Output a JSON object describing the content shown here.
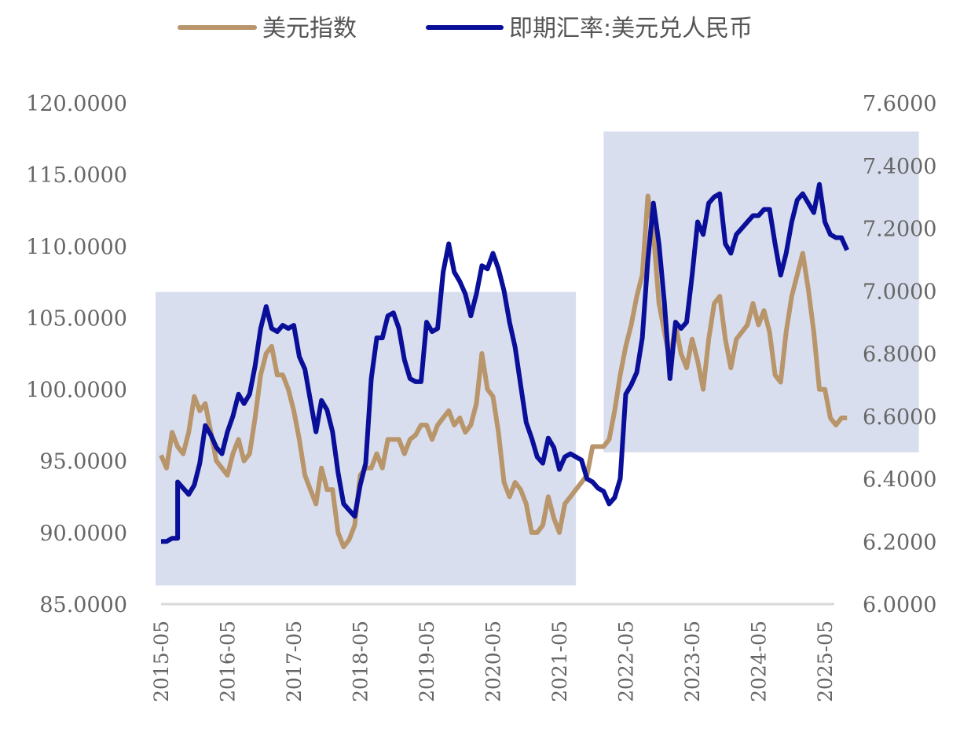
{
  "chart_data": {
    "type": "line",
    "title": "",
    "legend_position": "top",
    "colors": {
      "usd_index": "#B8956A",
      "usdcny": "#0A0F9A",
      "shade": "#D9DEEE",
      "axis": "#D9D9D9",
      "text": "#666666"
    },
    "left_axis": {
      "ylim": [
        85,
        120
      ],
      "ticks": [
        "85.0000",
        "90.0000",
        "95.0000",
        "100.0000",
        "105.0000",
        "110.0000",
        "115.0000",
        "120.0000"
      ]
    },
    "right_axis": {
      "ylim": [
        6.0,
        7.6
      ],
      "ticks": [
        "6.0000",
        "6.2000",
        "6.4000",
        "6.6000",
        "6.8000",
        "7.0000",
        "7.2000",
        "7.4000",
        "7.6000"
      ]
    },
    "x_ticks": [
      "2015-05",
      "2016-05",
      "2017-05",
      "2018-05",
      "2019-05",
      "2020-05",
      "2021-05",
      "2022-05",
      "2023-05",
      "2024-05",
      "2025-05"
    ],
    "shaded_regions": [
      {
        "x": [
          "2015-04",
          "2021-08"
        ],
        "left_y": [
          86.3,
          106.8
        ]
      },
      {
        "x": [
          "2022-01",
          "2026-10"
        ],
        "left_y": [
          95.6,
          118.0
        ]
      }
    ],
    "series": [
      {
        "name": "美元指数",
        "axis": "left",
        "points": [
          [
            "2015-05",
            95.4
          ],
          [
            "2015-06",
            94.5
          ],
          [
            "2015-07",
            97
          ],
          [
            "2015-08",
            96
          ],
          [
            "2015-09",
            95.5
          ],
          [
            "2015-10",
            97
          ],
          [
            "2015-11",
            99.5
          ],
          [
            "2015-12",
            98.5
          ],
          [
            "2016-01",
            99
          ],
          [
            "2016-02",
            97
          ],
          [
            "2016-03",
            95
          ],
          [
            "2016-04",
            94.5
          ],
          [
            "2016-05",
            94
          ],
          [
            "2016-06",
            95.5
          ],
          [
            "2016-07",
            96.5
          ],
          [
            "2016-08",
            95
          ],
          [
            "2016-09",
            95.5
          ],
          [
            "2016-10",
            98
          ],
          [
            "2016-11",
            101
          ],
          [
            "2016-12",
            102.5
          ],
          [
            "2017-01",
            103
          ],
          [
            "2017-02",
            101
          ],
          [
            "2017-03",
            101
          ],
          [
            "2017-04",
            100
          ],
          [
            "2017-05",
            98.5
          ],
          [
            "2017-06",
            96.5
          ],
          [
            "2017-07",
            94
          ],
          [
            "2017-08",
            93
          ],
          [
            "2017-09",
            92
          ],
          [
            "2017-10",
            94.5
          ],
          [
            "2017-11",
            93
          ],
          [
            "2017-12",
            93
          ],
          [
            "2018-01",
            90
          ],
          [
            "2018-02",
            89
          ],
          [
            "2018-03",
            89.5
          ],
          [
            "2018-04",
            90.5
          ],
          [
            "2018-05",
            94
          ],
          [
            "2018-06",
            94.5
          ],
          [
            "2018-07",
            94.5
          ],
          [
            "2018-08",
            95.5
          ],
          [
            "2018-09",
            94.5
          ],
          [
            "2018-10",
            96.5
          ],
          [
            "2018-11",
            96.5
          ],
          [
            "2018-12",
            96.5
          ],
          [
            "2019-01",
            95.5
          ],
          [
            "2019-02",
            96.5
          ],
          [
            "2019-03",
            96.8
          ],
          [
            "2019-04",
            97.5
          ],
          [
            "2019-05",
            97.5
          ],
          [
            "2019-06",
            96.5
          ],
          [
            "2019-07",
            97.5
          ],
          [
            "2019-08",
            98
          ],
          [
            "2019-09",
            98.5
          ],
          [
            "2019-10",
            97.5
          ],
          [
            "2019-11",
            98
          ],
          [
            "2019-12",
            97
          ],
          [
            "2020-01",
            97.5
          ],
          [
            "2020-02",
            99
          ],
          [
            "2020-03",
            102.5
          ],
          [
            "2020-04",
            100
          ],
          [
            "2020-05",
            99.5
          ],
          [
            "2020-06",
            97
          ],
          [
            "2020-07",
            93.5
          ],
          [
            "2020-08",
            92.5
          ],
          [
            "2020-09",
            93.5
          ],
          [
            "2020-10",
            93
          ],
          [
            "2020-11",
            92
          ],
          [
            "2020-12",
            90
          ],
          [
            "2021-01",
            90
          ],
          [
            "2021-02",
            90.5
          ],
          [
            "2021-03",
            92.5
          ],
          [
            "2021-04",
            91
          ],
          [
            "2021-05",
            90
          ],
          [
            "2021-06",
            92
          ],
          [
            "2021-07",
            92.5
          ],
          [
            "2021-08",
            93
          ],
          [
            "2021-09",
            93.5
          ],
          [
            "2021-10",
            94
          ],
          [
            "2021-11",
            96
          ],
          [
            "2021-12",
            96
          ],
          [
            "2022-01",
            96
          ],
          [
            "2022-02",
            96.5
          ],
          [
            "2022-03",
            98.5
          ],
          [
            "2022-04",
            101
          ],
          [
            "2022-05",
            103
          ],
          [
            "2022-06",
            104.5
          ],
          [
            "2022-07",
            106.5
          ],
          [
            "2022-08",
            108
          ],
          [
            "2022-09",
            113.5
          ],
          [
            "2022-10",
            111
          ],
          [
            "2022-11",
            106
          ],
          [
            "2022-12",
            104
          ],
          [
            "2023-01",
            102
          ],
          [
            "2023-02",
            104.5
          ],
          [
            "2023-03",
            102.5
          ],
          [
            "2023-04",
            101.5
          ],
          [
            "2023-05",
            103.5
          ],
          [
            "2023-06",
            102
          ],
          [
            "2023-07",
            100
          ],
          [
            "2023-08",
            103.5
          ],
          [
            "2023-09",
            106
          ],
          [
            "2023-10",
            106.5
          ],
          [
            "2023-11",
            103.5
          ],
          [
            "2023-12",
            101.5
          ],
          [
            "2024-01",
            103.5
          ],
          [
            "2024-02",
            104
          ],
          [
            "2024-03",
            104.5
          ],
          [
            "2024-04",
            106
          ],
          [
            "2024-05",
            104.5
          ],
          [
            "2024-06",
            105.5
          ],
          [
            "2024-07",
            104
          ],
          [
            "2024-08",
            101
          ],
          [
            "2024-09",
            100.5
          ],
          [
            "2024-10",
            104
          ],
          [
            "2024-11",
            106.5
          ],
          [
            "2024-12",
            108
          ],
          [
            "2025-01",
            109.5
          ],
          [
            "2025-02",
            107
          ],
          [
            "2025-03",
            104
          ],
          [
            "2025-04",
            100
          ],
          [
            "2025-05",
            100
          ],
          [
            "2025-06",
            98
          ],
          [
            "2025-07",
            97.5
          ],
          [
            "2025-08",
            98
          ],
          [
            "2025-09",
            98
          ]
        ]
      },
      {
        "name": "即期汇率:美元兑人民币",
        "axis": "right",
        "points": [
          [
            "2015-05",
            6.2
          ],
          [
            "2015-06",
            6.2
          ],
          [
            "2015-07",
            6.21
          ],
          [
            "2015-08",
            6.21
          ],
          [
            "2015-08",
            6.39
          ],
          [
            "2015-09",
            6.37
          ],
          [
            "2015-10",
            6.35
          ],
          [
            "2015-11",
            6.38
          ],
          [
            "2015-12",
            6.45
          ],
          [
            "2016-01",
            6.57
          ],
          [
            "2016-02",
            6.54
          ],
          [
            "2016-03",
            6.5
          ],
          [
            "2016-04",
            6.48
          ],
          [
            "2016-05",
            6.55
          ],
          [
            "2016-06",
            6.6
          ],
          [
            "2016-07",
            6.67
          ],
          [
            "2016-08",
            6.64
          ],
          [
            "2016-09",
            6.67
          ],
          [
            "2016-10",
            6.76
          ],
          [
            "2016-11",
            6.88
          ],
          [
            "2016-12",
            6.95
          ],
          [
            "2017-01",
            6.88
          ],
          [
            "2017-02",
            6.87
          ],
          [
            "2017-03",
            6.89
          ],
          [
            "2017-04",
            6.88
          ],
          [
            "2017-05",
            6.89
          ],
          [
            "2017-06",
            6.79
          ],
          [
            "2017-07",
            6.75
          ],
          [
            "2017-08",
            6.65
          ],
          [
            "2017-09",
            6.55
          ],
          [
            "2017-10",
            6.65
          ],
          [
            "2017-11",
            6.62
          ],
          [
            "2017-12",
            6.55
          ],
          [
            "2018-01",
            6.42
          ],
          [
            "2018-02",
            6.32
          ],
          [
            "2018-03",
            6.3
          ],
          [
            "2018-04",
            6.28
          ],
          [
            "2018-05",
            6.38
          ],
          [
            "2018-06",
            6.45
          ],
          [
            "2018-07",
            6.72
          ],
          [
            "2018-08",
            6.85
          ],
          [
            "2018-09",
            6.85
          ],
          [
            "2018-10",
            6.92
          ],
          [
            "2018-11",
            6.93
          ],
          [
            "2018-12",
            6.88
          ],
          [
            "2019-01",
            6.78
          ],
          [
            "2019-02",
            6.72
          ],
          [
            "2019-03",
            6.71
          ],
          [
            "2019-04",
            6.71
          ],
          [
            "2019-05",
            6.9
          ],
          [
            "2019-06",
            6.87
          ],
          [
            "2019-07",
            6.88
          ],
          [
            "2019-08",
            7.06
          ],
          [
            "2019-09",
            7.15
          ],
          [
            "2019-10",
            7.06
          ],
          [
            "2019-11",
            7.03
          ],
          [
            "2019-12",
            6.99
          ],
          [
            "2020-01",
            6.92
          ],
          [
            "2020-02",
            6.99
          ],
          [
            "2020-03",
            7.08
          ],
          [
            "2020-04",
            7.07
          ],
          [
            "2020-05",
            7.12
          ],
          [
            "2020-06",
            7.07
          ],
          [
            "2020-07",
            7.0
          ],
          [
            "2020-08",
            6.9
          ],
          [
            "2020-09",
            6.82
          ],
          [
            "2020-10",
            6.7
          ],
          [
            "2020-11",
            6.58
          ],
          [
            "2020-12",
            6.53
          ],
          [
            "2021-01",
            6.47
          ],
          [
            "2021-02",
            6.45
          ],
          [
            "2021-03",
            6.53
          ],
          [
            "2021-04",
            6.5
          ],
          [
            "2021-05",
            6.43
          ],
          [
            "2021-06",
            6.47
          ],
          [
            "2021-07",
            6.48
          ],
          [
            "2021-08",
            6.47
          ],
          [
            "2021-09",
            6.46
          ],
          [
            "2021-10",
            6.4
          ],
          [
            "2021-11",
            6.39
          ],
          [
            "2021-12",
            6.37
          ],
          [
            "2022-01",
            6.36
          ],
          [
            "2022-02",
            6.32
          ],
          [
            "2022-03",
            6.34
          ],
          [
            "2022-04",
            6.4
          ],
          [
            "2022-05",
            6.67
          ],
          [
            "2022-06",
            6.7
          ],
          [
            "2022-07",
            6.74
          ],
          [
            "2022-08",
            6.85
          ],
          [
            "2022-09",
            7.1
          ],
          [
            "2022-10",
            7.28
          ],
          [
            "2022-11",
            7.15
          ],
          [
            "2022-12",
            6.96
          ],
          [
            "2023-01",
            6.72
          ],
          [
            "2023-02",
            6.9
          ],
          [
            "2023-03",
            6.88
          ],
          [
            "2023-04",
            6.9
          ],
          [
            "2023-05",
            7.05
          ],
          [
            "2023-06",
            7.22
          ],
          [
            "2023-07",
            7.18
          ],
          [
            "2023-08",
            7.28
          ],
          [
            "2023-09",
            7.3
          ],
          [
            "2023-10",
            7.31
          ],
          [
            "2023-11",
            7.15
          ],
          [
            "2023-12",
            7.12
          ],
          [
            "2024-01",
            7.18
          ],
          [
            "2024-02",
            7.2
          ],
          [
            "2024-03",
            7.22
          ],
          [
            "2024-04",
            7.24
          ],
          [
            "2024-05",
            7.24
          ],
          [
            "2024-06",
            7.26
          ],
          [
            "2024-07",
            7.26
          ],
          [
            "2024-08",
            7.15
          ],
          [
            "2024-09",
            7.05
          ],
          [
            "2024-10",
            7.12
          ],
          [
            "2024-11",
            7.22
          ],
          [
            "2024-12",
            7.29
          ],
          [
            "2025-01",
            7.31
          ],
          [
            "2025-02",
            7.28
          ],
          [
            "2025-03",
            7.25
          ],
          [
            "2025-04",
            7.34
          ],
          [
            "2025-05",
            7.22
          ],
          [
            "2025-06",
            7.18
          ],
          [
            "2025-07",
            7.17
          ],
          [
            "2025-08",
            7.17
          ],
          [
            "2025-09",
            7.13
          ]
        ]
      }
    ]
  }
}
